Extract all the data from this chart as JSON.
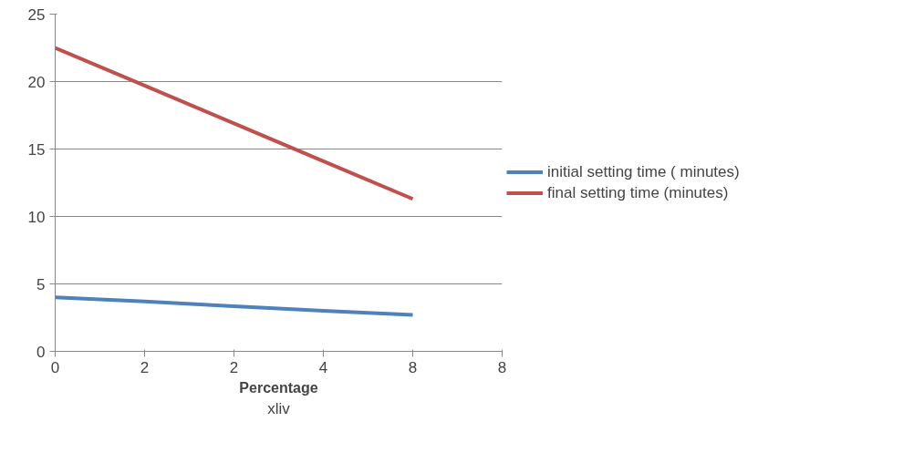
{
  "chart_data": {
    "type": "line",
    "xlabel": "Percentage",
    "categories": [
      "0",
      "2",
      "2",
      "4",
      "8",
      "8"
    ],
    "series": [
      {
        "name": "initial setting time ( minutes)",
        "color": "#4f81bd",
        "values": [
          4.0,
          3.7,
          3.35,
          3.0,
          2.7,
          null
        ]
      },
      {
        "name": "final setting time (minutes)",
        "color": "#c0504d",
        "values": [
          22.5,
          19.7,
          16.9,
          14.1,
          11.3,
          null
        ]
      }
    ],
    "ylim": [
      0,
      25
    ],
    "yticks": [
      0,
      5,
      10,
      15,
      20,
      25
    ],
    "grid": "y",
    "legend": "right",
    "marker": "none",
    "line_style": "solid",
    "annotations": [
      "xliv"
    ]
  }
}
